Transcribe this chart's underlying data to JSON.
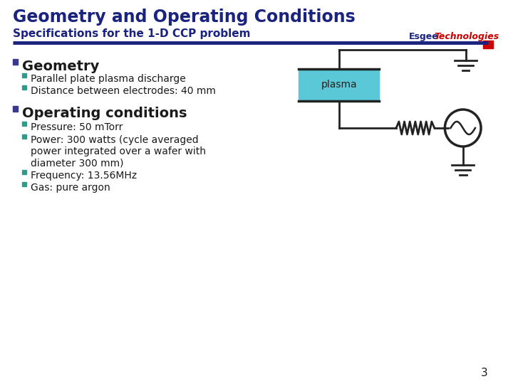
{
  "title": "Geometry and Operating Conditions",
  "subtitle": "Specifications for the 1-D CCP problem",
  "title_color": "#1a237e",
  "subtitle_color": "#1a237e",
  "brand_esgee": "Esgee",
  "brand_tech": "Technologies",
  "brand_color1": "#1a237e",
  "brand_color2": "#cc0000",
  "line_color": "#1a237e",
  "bar_color": "#cc0000",
  "background_color": "#ffffff",
  "bullet_color_main": "#3a3a8c",
  "bullet_color_sub": "#2a9d8f",
  "geometry_header": "Geometry",
  "geometry_items": [
    "Parallel plate plasma discharge",
    "Distance between electrodes: 40 mm"
  ],
  "operating_header": "Operating conditions",
  "operating_items": [
    "Pressure: 50 mTorr",
    "Power: 300 watts (cycle averaged\npower integrated over a wafer with\ndiameter 300 mm)",
    "Frequency: 13.56MHz",
    "Gas: pure argon"
  ],
  "plasma_color": "#5bc8d8",
  "plasma_label": "plasma",
  "page_number": "3",
  "circuit_color": "#222222"
}
